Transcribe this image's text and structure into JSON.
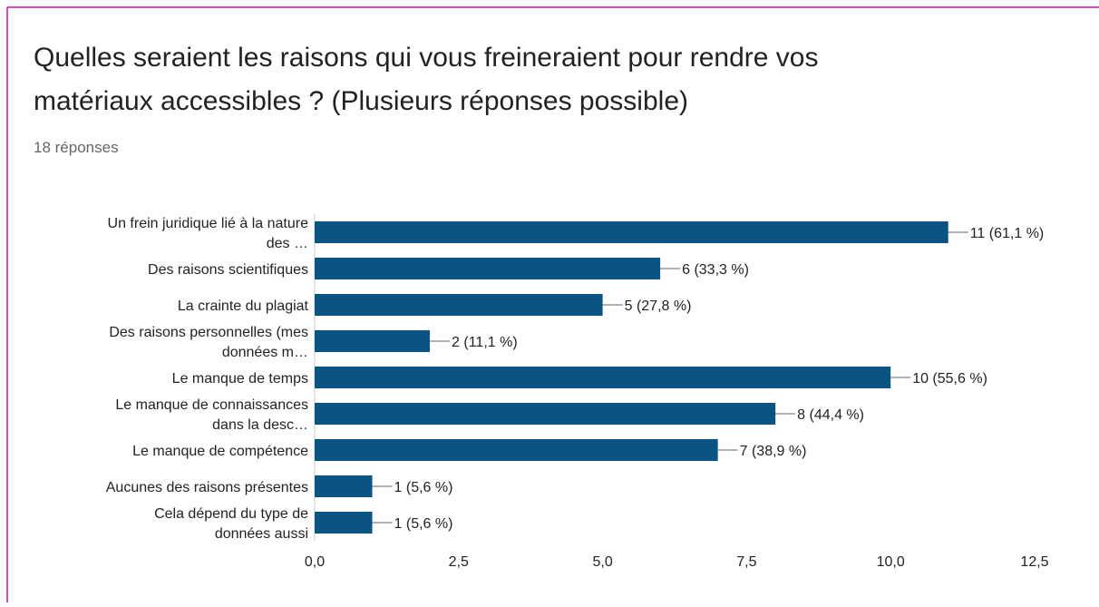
{
  "chart_data": {
    "type": "barh",
    "title": "Quelles seraient les raisons qui vous freineraient pour rendre vos\nmatériaux accessibles ? (Plusieurs réponses possible)",
    "subtitle": "18 réponses",
    "categories": [
      "Un frein juridique lié à la nature\ndes …",
      "Des raisons scientifiques",
      "La crainte du plagiat",
      "Des raisons personnelles (mes\ndonnées m…",
      "Le manque de temps",
      "Le manque de connaissances\ndans la desc…",
      "Le manque de compétence",
      "Aucunes des raisons présentes",
      "Cela dépend du type de\ndonnées aussi"
    ],
    "values": [
      11,
      6,
      5,
      2,
      10,
      8,
      7,
      1,
      1
    ],
    "value_labels": [
      "11 (61,1 %)",
      "6 (33,3 %)",
      "5 (27,8 %)",
      "2 (11,1 %)",
      "10 (55,6 %)",
      "8 (44,4 %)",
      "7 (38,9 %)",
      "1 (5,6 %)",
      "1 (5,6 %)"
    ],
    "color": "#0b5383",
    "xlim": [
      0,
      12.5
    ],
    "xticks": [
      {
        "value": 0,
        "label": "0,0"
      },
      {
        "value": 2.5,
        "label": "2,5"
      },
      {
        "value": 5,
        "label": "5,0"
      },
      {
        "value": 7.5,
        "label": "7,5"
      },
      {
        "value": 10,
        "label": "10,0"
      },
      {
        "value": 12.5,
        "label": "12,5"
      }
    ]
  }
}
